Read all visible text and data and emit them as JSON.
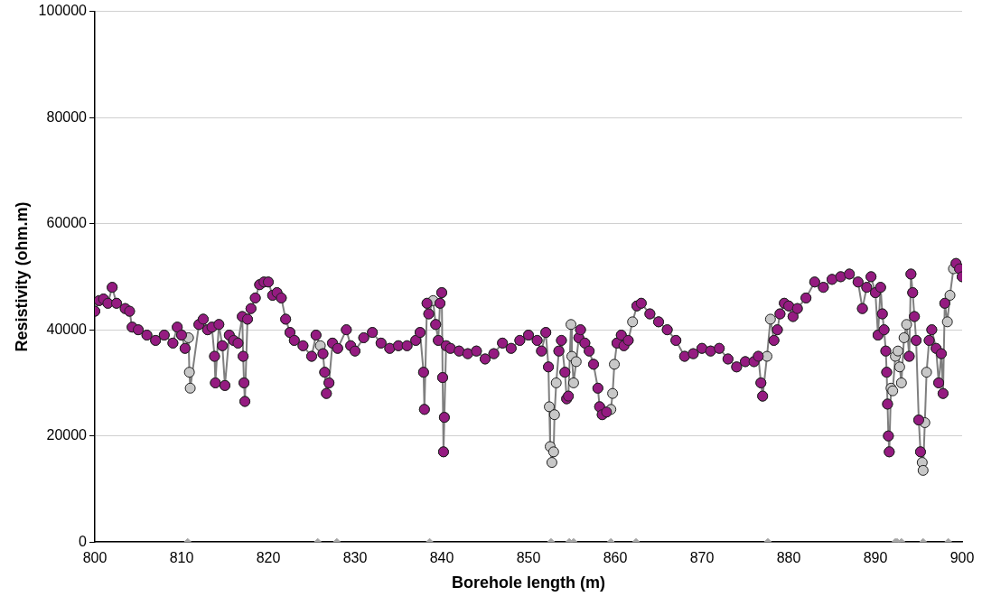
{
  "chart_data": {
    "type": "line",
    "xlabel": "Borehole length (m)",
    "ylabel": "Resistivity (ohm.m)",
    "xlim": [
      800,
      900
    ],
    "ylim": [
      0,
      100000
    ],
    "xticks": [
      800,
      810,
      820,
      830,
      840,
      850,
      860,
      870,
      880,
      890,
      900
    ],
    "yticks": [
      0,
      20000,
      40000,
      60000,
      80000,
      100000
    ],
    "grid": "y",
    "legend": false,
    "series": [
      {
        "marker": "circle",
        "color": "#c8c8c8",
        "x": [
          800.0,
          800.5,
          801.0,
          801.5,
          802.0,
          802.5,
          803.5,
          804.0,
          804.3,
          805.0,
          806.0,
          807.0,
          808.0,
          809.0,
          809.5,
          810.0,
          810.4,
          810.8,
          810.9,
          811.0,
          812.0,
          812.5,
          813.0,
          813.5,
          813.8,
          813.9,
          814.3,
          814.7,
          815.0,
          815.5,
          816.0,
          816.5,
          817.0,
          817.1,
          817.2,
          817.3,
          817.6,
          818.0,
          818.5,
          819.0,
          819.5,
          820.0,
          820.5,
          821.0,
          821.5,
          822.0,
          822.5,
          823.0,
          824.0,
          825.0,
          825.5,
          826.0,
          826.3,
          826.5,
          826.7,
          827.0,
          827.4,
          828.0,
          829.0,
          829.5,
          830.0,
          831.0,
          832.0,
          833.0,
          834.0,
          835.0,
          836.0,
          837.0,
          837.5,
          837.9,
          838.0,
          838.3,
          838.5,
          839.0,
          839.3,
          839.6,
          839.8,
          840.0,
          840.1,
          840.2,
          840.3,
          840.5,
          841.0,
          842.0,
          843.0,
          844.0,
          845.0,
          846.0,
          847.0,
          848.0,
          849.0,
          850.0,
          851.0,
          851.5,
          852.0,
          852.3,
          852.4,
          852.5,
          852.7,
          852.9,
          853.0,
          853.2,
          853.5,
          853.8,
          854.2,
          854.4,
          854.6,
          854.9,
          855.0,
          855.2,
          855.5,
          855.8,
          856.0,
          856.5,
          857.0,
          857.5,
          858.0,
          858.2,
          858.5,
          859.0,
          859.5,
          859.7,
          859.9,
          860.2,
          860.7,
          861.0,
          861.5,
          862.0,
          862.5,
          863.0,
          864.0,
          865.0,
          866.0,
          867.0,
          868.0,
          869.0,
          870.0,
          871.0,
          872.0,
          873.0,
          874.0,
          875.0,
          876.0,
          876.5,
          876.8,
          877.0,
          877.5,
          877.9,
          878.3,
          878.7,
          879.0,
          879.5,
          880.0,
          880.5,
          881.0,
          882.0,
          883.0,
          884.0,
          885.0,
          886.0,
          887.0,
          888.0,
          888.5,
          889.0,
          889.5,
          890.0,
          890.3,
          890.6,
          890.8,
          891.0,
          891.2,
          891.3,
          891.4,
          891.5,
          891.6,
          891.8,
          892.0,
          892.3,
          892.6,
          892.8,
          893.0,
          893.3,
          893.6,
          893.9,
          894.1,
          894.3,
          894.5,
          894.7,
          895.0,
          895.2,
          895.4,
          895.5,
          895.7,
          895.9,
          896.2,
          896.5,
          897.0,
          897.3,
          897.6,
          897.8,
          898.0,
          898.3,
          898.6,
          899.0,
          899.3,
          899.7,
          900.0
        ],
        "values": [
          43500,
          45500,
          45800,
          45000,
          48000,
          45000,
          44000,
          43500,
          40500,
          40000,
          39000,
          38000,
          39000,
          37500,
          40500,
          39000,
          36500,
          38500,
          32000,
          29000,
          41000,
          42000,
          40000,
          40500,
          35000,
          30000,
          41000,
          37000,
          29500,
          39000,
          38000,
          37500,
          42500,
          35000,
          30000,
          26500,
          42000,
          44000,
          46000,
          48500,
          49000,
          49000,
          46500,
          47000,
          46000,
          42000,
          39500,
          38000,
          37000,
          35000,
          39000,
          37000,
          35500,
          32000,
          28000,
          30000,
          37500,
          36500,
          40000,
          37000,
          36000,
          38500,
          39500,
          37500,
          36500,
          37000,
          37000,
          38000,
          39500,
          32000,
          25000,
          45000,
          43000,
          45500,
          41000,
          38000,
          45000,
          47000,
          31000,
          17000,
          23500,
          37000,
          36500,
          36000,
          35500,
          36000,
          34500,
          35500,
          37500,
          36500,
          38000,
          39000,
          38000,
          36000,
          39500,
          33000,
          25500,
          18000,
          15000,
          17000,
          24000,
          30000,
          36000,
          38000,
          32000,
          27000,
          27500,
          41000,
          35000,
          30000,
          34000,
          38500,
          40000,
          37500,
          36000,
          33500,
          29000,
          25500,
          24000,
          24500,
          25000,
          28000,
          33500,
          37500,
          39000,
          37000,
          38000,
          41500,
          44500,
          45000,
          43000,
          41500,
          40000,
          38000,
          35000,
          35500,
          36500,
          36000,
          36500,
          34500,
          33000,
          34000,
          34000,
          35000,
          30000,
          27500,
          35000,
          42000,
          38000,
          40000,
          43000,
          45000,
          44500,
          42500,
          44000,
          46000,
          49000,
          48000,
          49500,
          50000,
          50500,
          49000,
          44000,
          48000,
          50000,
          47000,
          39000,
          48000,
          43000,
          40000,
          36000,
          32000,
          26000,
          20000,
          17000,
          29000,
          28500,
          35000,
          36000,
          33000,
          30000,
          38500,
          41000,
          35000,
          50500,
          47000,
          42500,
          38000,
          23000,
          17000,
          15000,
          13500,
          22500,
          32000,
          38000,
          40000,
          36500,
          30000,
          35500,
          28000,
          45000,
          41500,
          46500,
          51500,
          52500,
          51500,
          50000
        ]
      },
      {
        "type": "scatter",
        "marker": "circle",
        "color": "#951b81",
        "x": [
          800.0,
          800.5,
          801.0,
          801.5,
          802.0,
          802.5,
          803.5,
          804.0,
          804.3,
          805.0,
          806.0,
          807.0,
          808.0,
          809.0,
          809.5,
          810.0,
          810.4,
          812.0,
          812.5,
          813.0,
          813.5,
          813.8,
          813.9,
          814.3,
          814.7,
          815.0,
          815.5,
          816.0,
          816.5,
          817.0,
          817.1,
          817.2,
          817.3,
          817.6,
          818.0,
          818.5,
          819.0,
          819.5,
          820.0,
          820.5,
          821.0,
          821.5,
          822.0,
          822.5,
          823.0,
          824.0,
          825.0,
          825.5,
          826.3,
          826.5,
          826.7,
          827.0,
          827.4,
          828.0,
          829.0,
          829.5,
          830.0,
          831.0,
          832.0,
          833.0,
          834.0,
          835.0,
          836.0,
          837.0,
          837.5,
          837.9,
          838.0,
          838.3,
          838.5,
          839.3,
          839.6,
          839.8,
          840.0,
          840.1,
          840.2,
          840.3,
          840.5,
          841.0,
          842.0,
          843.0,
          844.0,
          845.0,
          846.0,
          847.0,
          848.0,
          849.0,
          850.0,
          851.0,
          851.5,
          852.0,
          852.3,
          853.5,
          853.8,
          854.2,
          854.4,
          854.6,
          855.8,
          856.0,
          856.5,
          857.0,
          857.5,
          858.0,
          858.2,
          858.5,
          859.0,
          860.2,
          860.7,
          861.0,
          861.5,
          862.5,
          863.0,
          864.0,
          865.0,
          866.0,
          867.0,
          868.0,
          869.0,
          870.0,
          871.0,
          872.0,
          873.0,
          874.0,
          875.0,
          876.0,
          876.5,
          876.8,
          877.0,
          878.3,
          878.7,
          879.0,
          879.5,
          880.0,
          880.5,
          881.0,
          882.0,
          883.0,
          884.0,
          885.0,
          886.0,
          887.0,
          888.0,
          888.5,
          889.0,
          889.5,
          890.0,
          890.3,
          890.6,
          890.8,
          891.0,
          891.2,
          891.3,
          891.4,
          891.5,
          891.6,
          893.9,
          894.1,
          894.3,
          894.5,
          894.7,
          895.0,
          895.2,
          896.2,
          896.5,
          897.0,
          897.3,
          897.6,
          897.8,
          898.0,
          899.3,
          899.7,
          900.0
        ],
        "values": [
          43500,
          45500,
          45800,
          45000,
          48000,
          45000,
          44000,
          43500,
          40500,
          40000,
          39000,
          38000,
          39000,
          37500,
          40500,
          39000,
          36500,
          41000,
          42000,
          40000,
          40500,
          35000,
          30000,
          41000,
          37000,
          29500,
          39000,
          38000,
          37500,
          42500,
          35000,
          30000,
          26500,
          42000,
          44000,
          46000,
          48500,
          49000,
          49000,
          46500,
          47000,
          46000,
          42000,
          39500,
          38000,
          37000,
          35000,
          39000,
          35500,
          32000,
          28000,
          30000,
          37500,
          36500,
          40000,
          37000,
          36000,
          38500,
          39500,
          37500,
          36500,
          37000,
          37000,
          38000,
          39500,
          32000,
          25000,
          45000,
          43000,
          41000,
          38000,
          45000,
          47000,
          31000,
          17000,
          23500,
          37000,
          36500,
          36000,
          35500,
          36000,
          34500,
          35500,
          37500,
          36500,
          38000,
          39000,
          38000,
          36000,
          39500,
          33000,
          36000,
          38000,
          32000,
          27000,
          27500,
          38500,
          40000,
          37500,
          36000,
          33500,
          29000,
          25500,
          24000,
          24500,
          37500,
          39000,
          37000,
          38000,
          44500,
          45000,
          43000,
          41500,
          40000,
          38000,
          35000,
          35500,
          36500,
          36000,
          36500,
          34500,
          33000,
          34000,
          34000,
          35000,
          30000,
          27500,
          38000,
          40000,
          43000,
          45000,
          44500,
          42500,
          44000,
          46000,
          49000,
          48000,
          49500,
          50000,
          50500,
          49000,
          44000,
          48000,
          50000,
          47000,
          39000,
          48000,
          43000,
          40000,
          36000,
          32000,
          26000,
          20000,
          17000,
          35000,
          50500,
          47000,
          42500,
          38000,
          23000,
          17000,
          38000,
          40000,
          36500,
          30000,
          35500,
          28000,
          45000,
          52500,
          51500,
          50000
        ]
      },
      {
        "type": "scatter",
        "marker": "diamond",
        "color": "#a6a6a6",
        "x": [
          810.7,
          825.7,
          827.9,
          838.6,
          852.6,
          854.7,
          855.2,
          859.5,
          862.4,
          877.6,
          892.3,
          892.5,
          893.0,
          895.5,
          898.4
        ],
        "values": [
          0,
          0,
          0,
          0,
          0,
          0,
          0,
          0,
          0,
          0,
          0,
          0,
          0,
          0,
          0
        ]
      }
    ]
  }
}
